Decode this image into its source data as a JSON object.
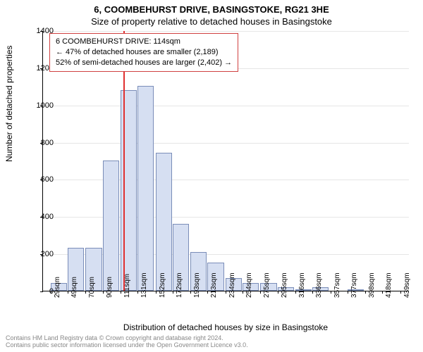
{
  "title_line1": "6, COOMBEHURST DRIVE, BASINGSTOKE, RG21 3HE",
  "title_line2": "Size of property relative to detached houses in Basingstoke",
  "ylabel": "Number of detached properties",
  "xlabel": "Distribution of detached houses by size in Basingstoke",
  "footer_line1": "Contains HM Land Registry data © Crown copyright and database right 2024.",
  "footer_line2": "Contains public sector information licensed under the Open Government Licence v3.0.",
  "chart": {
    "type": "histogram",
    "xlim": [
      20,
      450
    ],
    "ylim": [
      0,
      1400
    ],
    "ytick_step": 200,
    "grid_color": "#e6e6e6",
    "bar_fill": "#d6dff2",
    "bar_border": "#7a8db8",
    "marker_color": "#e03030",
    "bin_width": 20,
    "x_start": 29,
    "marker_x": 114,
    "bins": [
      {
        "label": "29sqm",
        "x": 29,
        "value": 40
      },
      {
        "label": "49sqm",
        "x": 49,
        "value": 230
      },
      {
        "label": "70sqm",
        "x": 70,
        "value": 230
      },
      {
        "label": "90sqm",
        "x": 90,
        "value": 700
      },
      {
        "label": "111sqm",
        "x": 111,
        "value": 1080
      },
      {
        "label": "131sqm",
        "x": 131,
        "value": 1100
      },
      {
        "label": "152sqm",
        "x": 152,
        "value": 740
      },
      {
        "label": "172sqm",
        "x": 172,
        "value": 360
      },
      {
        "label": "193sqm",
        "x": 193,
        "value": 210
      },
      {
        "label": "213sqm",
        "x": 213,
        "value": 150
      },
      {
        "label": "234sqm",
        "x": 234,
        "value": 70
      },
      {
        "label": "254sqm",
        "x": 254,
        "value": 40
      },
      {
        "label": "275sqm",
        "x": 275,
        "value": 40
      },
      {
        "label": "295sqm",
        "x": 295,
        "value": 18
      },
      {
        "label": "316sqm",
        "x": 316,
        "value": 8
      },
      {
        "label": "336sqm",
        "x": 336,
        "value": 18
      },
      {
        "label": "357sqm",
        "x": 357,
        "value": 0
      },
      {
        "label": "377sqm",
        "x": 377,
        "value": 8
      },
      {
        "label": "398sqm",
        "x": 398,
        "value": 0
      },
      {
        "label": "418sqm",
        "x": 418,
        "value": 0
      },
      {
        "label": "439sqm",
        "x": 439,
        "value": 0
      }
    ]
  },
  "infobox": {
    "line1": "6 COOMBEHURST DRIVE: 114sqm",
    "line2": "← 47% of detached houses are smaller (2,189)",
    "line3": "52% of semi-detached houses are larger (2,402) →",
    "border_color": "#d04040",
    "bg": "#ffffff",
    "fontsize": 11
  }
}
